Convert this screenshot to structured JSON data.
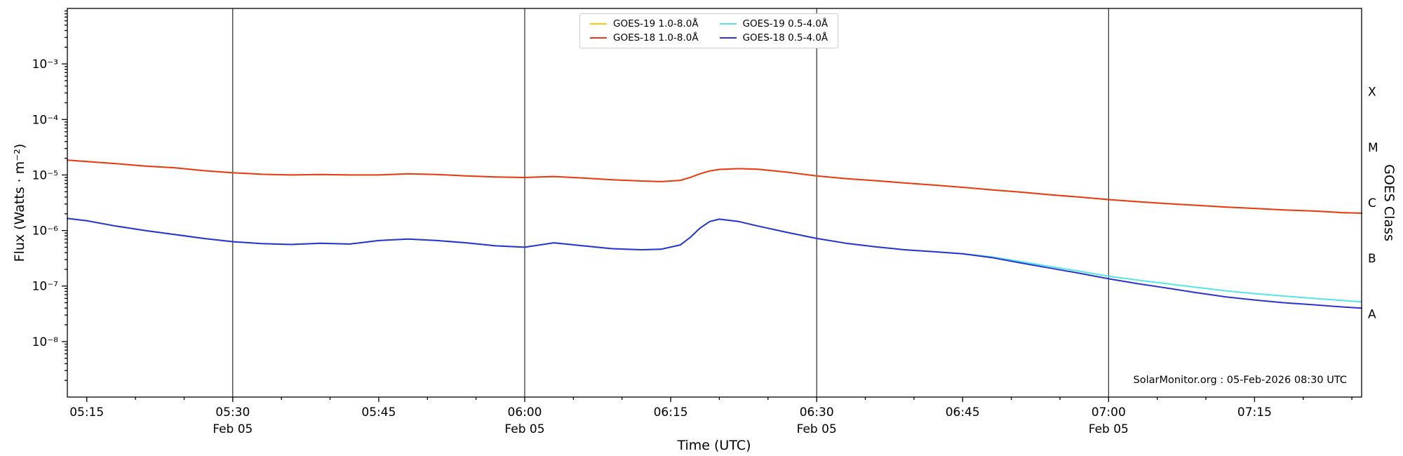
{
  "chart_data": {
    "type": "line",
    "title": "",
    "xlabel": "Time (UTC)",
    "ylabel": "Flux (Watts · m⁻²)",
    "ylabel_right": "GOES Class",
    "annotation": "SolarMonitor.org : 05-Feb-2026 08:30 UTC",
    "x_unit": "minutes after 05:00 UTC",
    "x_range": [
      13,
      146
    ],
    "y_range_exp": [
      -9,
      -2
    ],
    "grid_color": "#000000",
    "axis_color": "#000000",
    "x_major_ticks": [
      {
        "t": 15,
        "label": "05:15"
      },
      {
        "t": 30,
        "label": "05:30",
        "sublabel": "Feb 05",
        "grid": true
      },
      {
        "t": 45,
        "label": "05:45"
      },
      {
        "t": 60,
        "label": "06:00",
        "sublabel": "Feb 05",
        "grid": true
      },
      {
        "t": 75,
        "label": "06:15"
      },
      {
        "t": 90,
        "label": "06:30",
        "sublabel": "Feb 05",
        "grid": true
      },
      {
        "t": 105,
        "label": "06:45"
      },
      {
        "t": 120,
        "label": "07:00",
        "sublabel": "Feb 05",
        "grid": true
      },
      {
        "t": 135,
        "label": "07:15"
      }
    ],
    "x_minor_step_minutes": 5,
    "y_major_ticks": [
      {
        "exp": -3,
        "label": "10⁻³"
      },
      {
        "exp": -4,
        "label": "10⁻⁴"
      },
      {
        "exp": -5,
        "label": "10⁻⁵"
      },
      {
        "exp": -6,
        "label": "10⁻⁶"
      },
      {
        "exp": -7,
        "label": "10⁻⁷"
      },
      {
        "exp": -8,
        "label": "10⁻⁸"
      }
    ],
    "goes_classes": [
      {
        "label": "X",
        "y_exp": -3.5
      },
      {
        "label": "M",
        "y_exp": -4.5
      },
      {
        "label": "C",
        "y_exp": -5.5
      },
      {
        "label": "B",
        "y_exp": -6.5
      },
      {
        "label": "A",
        "y_exp": -7.5
      }
    ],
    "x_minutes": [
      13,
      15,
      18,
      21,
      24,
      27,
      30,
      33,
      36,
      39,
      42,
      45,
      48,
      51,
      54,
      57,
      60,
      63,
      66,
      69,
      72,
      74,
      76,
      77,
      78,
      79,
      80,
      82,
      84,
      87,
      90,
      93,
      96,
      99,
      102,
      105,
      108,
      111,
      114,
      117,
      120,
      123,
      126,
      129,
      132,
      135,
      138,
      141,
      144,
      146
    ],
    "series": [
      {
        "name": "GOES-19 1.0-8.0Å",
        "color": "#ffcc00",
        "values": [
          1.85e-05,
          1.75e-05,
          1.6e-05,
          1.45e-05,
          1.35e-05,
          1.2e-05,
          1.1e-05,
          1.03e-05,
          1e-05,
          1.02e-05,
          1e-05,
          1e-05,
          1.05e-05,
          1.02e-05,
          9.6e-06,
          9.2e-06,
          9e-06,
          9.4e-06,
          8.8e-06,
          8.2e-06,
          7.8e-06,
          7.6e-06,
          8e-06,
          9e-06,
          1.05e-05,
          1.18e-05,
          1.26e-05,
          1.3e-05,
          1.27e-05,
          1.12e-05,
          9.6e-06,
          8.6e-06,
          7.9e-06,
          7.2e-06,
          6.6e-06,
          6e-06,
          5.4e-06,
          4.9e-06,
          4.4e-06,
          4e-06,
          3.6e-06,
          3.3e-06,
          3.05e-06,
          2.85e-06,
          2.65e-06,
          2.5e-06,
          2.35e-06,
          2.25e-06,
          2.1e-06,
          2.05e-06
        ]
      },
      {
        "name": "GOES-18 1.0-8.0Å",
        "color": "#e8391d",
        "values": [
          1.85e-05,
          1.75e-05,
          1.6e-05,
          1.45e-05,
          1.35e-05,
          1.2e-05,
          1.1e-05,
          1.03e-05,
          1e-05,
          1.02e-05,
          1e-05,
          1e-05,
          1.05e-05,
          1.02e-05,
          9.6e-06,
          9.2e-06,
          9e-06,
          9.4e-06,
          8.8e-06,
          8.2e-06,
          7.8e-06,
          7.6e-06,
          8e-06,
          9e-06,
          1.05e-05,
          1.18e-05,
          1.26e-05,
          1.3e-05,
          1.27e-05,
          1.12e-05,
          9.6e-06,
          8.6e-06,
          7.9e-06,
          7.2e-06,
          6.6e-06,
          6e-06,
          5.4e-06,
          4.9e-06,
          4.4e-06,
          4e-06,
          3.6e-06,
          3.3e-06,
          3.05e-06,
          2.85e-06,
          2.65e-06,
          2.5e-06,
          2.35e-06,
          2.25e-06,
          2.1e-06,
          2.05e-06
        ]
      },
      {
        "name": "GOES-19 0.5-4.0Å",
        "color": "#55e4e8",
        "values": [
          1.65e-06,
          1.5e-06,
          1.2e-06,
          1e-06,
          8.5e-07,
          7.2e-07,
          6.3e-07,
          5.8e-07,
          5.6e-07,
          5.9e-07,
          5.7e-07,
          6.6e-07,
          7e-07,
          6.6e-07,
          6e-07,
          5.3e-07,
          5e-07,
          6e-07,
          5.3e-07,
          4.7e-07,
          4.5e-07,
          4.6e-07,
          5.5e-07,
          7.5e-07,
          1.1e-06,
          1.45e-06,
          1.6e-06,
          1.45e-06,
          1.2e-06,
          9.2e-07,
          7.2e-07,
          5.9e-07,
          5.1e-07,
          4.5e-07,
          4.15e-07,
          3.8e-07,
          3.35e-07,
          2.75e-07,
          2.25e-07,
          1.85e-07,
          1.5e-07,
          1.28e-07,
          1.1e-07,
          9.5e-08,
          8.2e-08,
          7.3e-08,
          6.6e-08,
          6e-08,
          5.5e-08,
          5.2e-08
        ]
      },
      {
        "name": "GOES-18 0.5-4.0Å",
        "color": "#2a33cf",
        "values": [
          1.65e-06,
          1.5e-06,
          1.2e-06,
          1e-06,
          8.5e-07,
          7.2e-07,
          6.3e-07,
          5.8e-07,
          5.6e-07,
          5.9e-07,
          5.7e-07,
          6.6e-07,
          7e-07,
          6.6e-07,
          6e-07,
          5.3e-07,
          5e-07,
          6e-07,
          5.3e-07,
          4.7e-07,
          4.5e-07,
          4.6e-07,
          5.5e-07,
          7.5e-07,
          1.1e-06,
          1.45e-06,
          1.6e-06,
          1.45e-06,
          1.2e-06,
          9.2e-07,
          7.2e-07,
          5.9e-07,
          5.1e-07,
          4.5e-07,
          4.15e-07,
          3.8e-07,
          3.25e-07,
          2.6e-07,
          2.1e-07,
          1.7e-07,
          1.35e-07,
          1.1e-07,
          9.2e-08,
          7.6e-08,
          6.4e-08,
          5.6e-08,
          5e-08,
          4.6e-08,
          4.2e-08,
          4e-08
        ]
      }
    ],
    "legend_position": "top-center",
    "grid": "vertical-only"
  }
}
